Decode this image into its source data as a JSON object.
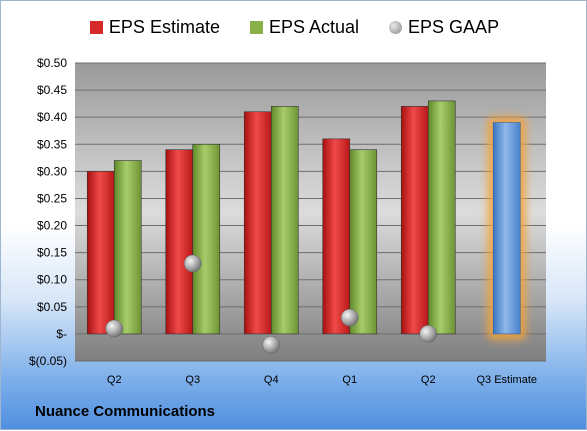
{
  "chart_data": {
    "type": "bar",
    "categories": [
      "Q2",
      "Q3",
      "Q4",
      "Q1",
      "Q2",
      "Q3 Estimate"
    ],
    "series": [
      {
        "name": "EPS Estimate",
        "values": [
          0.3,
          0.34,
          0.41,
          0.36,
          0.42,
          null
        ],
        "color": "#d62a2a"
      },
      {
        "name": "EPS Actual",
        "values": [
          0.32,
          0.35,
          0.42,
          0.34,
          0.43,
          null
        ],
        "color": "#8ab04a"
      },
      {
        "name": "EPS GAAP",
        "values": [
          0.01,
          0.13,
          -0.02,
          0.03,
          0.0,
          null
        ],
        "color": "#b0b0b0"
      },
      {
        "name": "",
        "values": [
          null,
          null,
          null,
          null,
          null,
          0.39
        ],
        "color": "#6fa0dc"
      }
    ],
    "y_tick_labels": [
      "$(0.05)",
      "$-",
      "$0.05",
      "$0.10",
      "$0.15",
      "$0.20",
      "$0.25",
      "$0.30",
      "$0.35",
      "$0.40",
      "$0.45",
      "$0.50"
    ],
    "ylim": [
      -0.05,
      0.5
    ],
    "grid": true,
    "legend": "top"
  },
  "footer": {
    "title": "Nuance Communications"
  }
}
